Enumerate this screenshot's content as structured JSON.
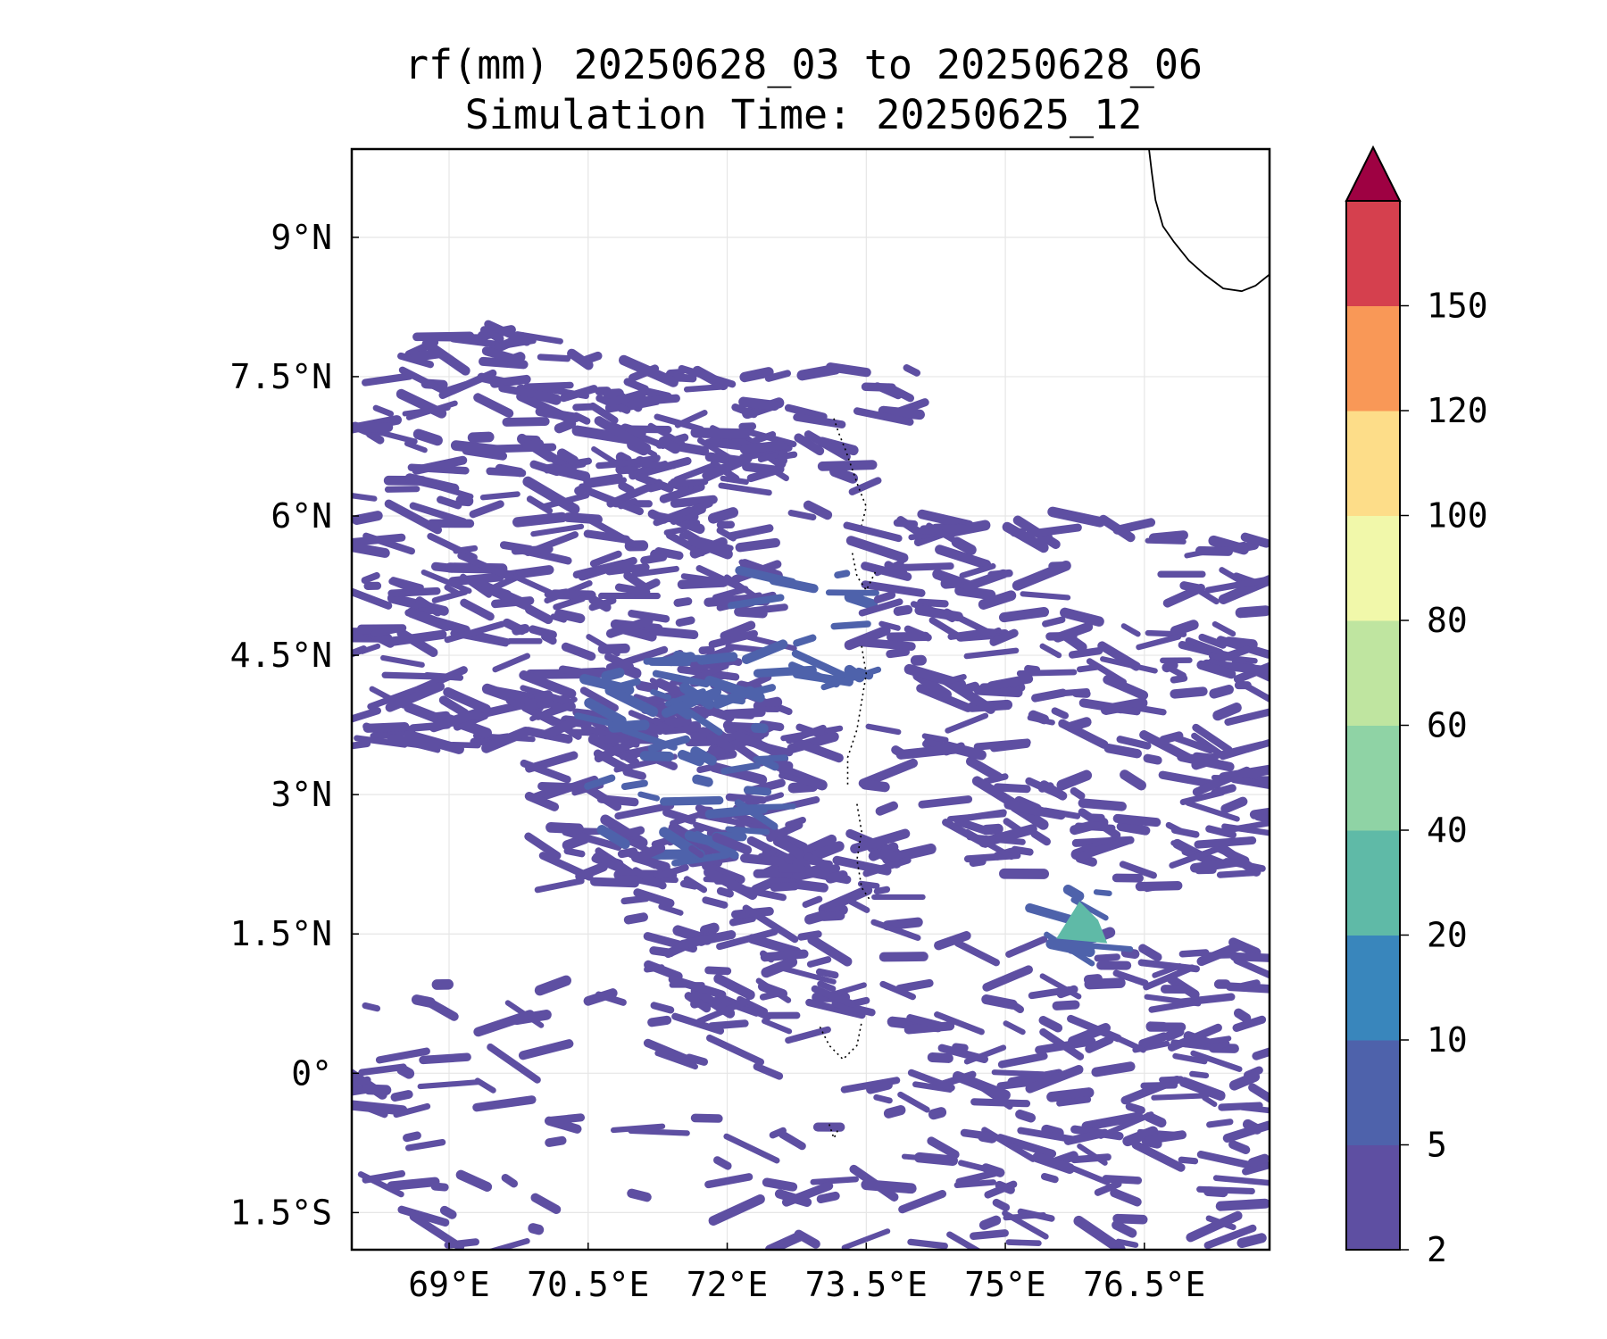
{
  "titles": {
    "line1": "rf(mm) 20250628_03 to 20250628_06",
    "line2": "Simulation Time: 20250625_12"
  },
  "chart_data": {
    "type": "heatmap",
    "variable": "rf(mm)",
    "title": "rf(mm) 20250628_03 to 20250628_06",
    "subtitle": "Simulation Time: 20250625_12",
    "xlim": [
      67.95,
      77.85
    ],
    "ylim": [
      -1.9,
      9.95
    ],
    "x_ticks": [
      69,
      70.5,
      72,
      73.5,
      75,
      76.5
    ],
    "x_tick_labels": [
      "69°E",
      "70.5°E",
      "72°E",
      "73.5°E",
      "75°E",
      "76.5°E"
    ],
    "y_ticks": [
      9,
      7.5,
      6,
      4.5,
      3,
      1.5,
      0,
      -1.5
    ],
    "y_tick_labels": [
      "9°N",
      "7.5°N",
      "6°N",
      "4.5°N",
      "3°N",
      "1.5°N",
      "0°",
      "1.5°S"
    ],
    "grid": true,
    "colorbar": {
      "levels": [
        2,
        5,
        10,
        20,
        40,
        60,
        80,
        100,
        120,
        150
      ],
      "labels": [
        "2",
        "5",
        "10",
        "20",
        "40",
        "60",
        "80",
        "100",
        "120",
        "150"
      ],
      "colors": [
        "#5e4fa2",
        "#4e62ab",
        "#3986bc",
        "#5fbaa7",
        "#8fd3a5",
        "#bfe5a0",
        "#f1f8aa",
        "#fddd89",
        "#f99857",
        "#d5404e"
      ],
      "extend_color": "#9e0142",
      "extend": "max"
    },
    "rain_regions": [
      {
        "lon": [
          68.0,
          71.0
        ],
        "lat": [
          7.0,
          8.0
        ],
        "level": 0,
        "density": 0.5
      },
      {
        "lon": [
          68.0,
          72.5
        ],
        "lat": [
          5.5,
          7.0
        ],
        "level": 0,
        "density": 0.55
      },
      {
        "lon": [
          68.0,
          72.5
        ],
        "lat": [
          3.5,
          5.5
        ],
        "level": 0,
        "density": 0.75
      },
      {
        "lon": [
          70.0,
          73.0
        ],
        "lat": [
          2.0,
          4.0
        ],
        "level": 0,
        "density": 0.7
      },
      {
        "lon": [
          72.3,
          73.5
        ],
        "lat": [
          4.2,
          5.4
        ],
        "level": 1,
        "density": 0.4
      },
      {
        "lon": [
          70.5,
          72.5
        ],
        "lat": [
          2.3,
          4.5
        ],
        "level": 1,
        "density": 0.4
      },
      {
        "lon": [
          73.5,
          77.8
        ],
        "lat": [
          2.0,
          6.0
        ],
        "level": 0,
        "density": 0.5
      },
      {
        "lon": [
          71.0,
          74.0
        ],
        "lat": [
          0.7,
          2.5
        ],
        "level": 0,
        "density": 0.55
      },
      {
        "lon": [
          74.0,
          77.8
        ],
        "lat": [
          -1.9,
          1.5
        ],
        "level": 0,
        "density": 0.45
      },
      {
        "lon": [
          68.0,
          74.0
        ],
        "lat": [
          -1.9,
          1.0
        ],
        "level": 0,
        "density": 0.18
      },
      {
        "lon": [
          70.0,
          74.0
        ],
        "lat": [
          6.0,
          7.6
        ],
        "level": 0,
        "density": 0.45
      },
      {
        "lon": [
          75.5,
          76.2
        ],
        "lat": [
          1.25,
          1.95
        ],
        "level": 1,
        "density": 0.6
      }
    ],
    "hotspot": {
      "lon": 75.8,
      "lat": 1.6,
      "level": 3
    },
    "coastline": [
      [
        76.55,
        9.95
      ],
      [
        76.58,
        9.7
      ],
      [
        76.62,
        9.4
      ],
      [
        76.7,
        9.12
      ],
      [
        76.82,
        8.95
      ],
      [
        76.98,
        8.75
      ],
      [
        77.15,
        8.6
      ],
      [
        77.35,
        8.45
      ],
      [
        77.55,
        8.42
      ],
      [
        77.7,
        8.48
      ],
      [
        77.85,
        8.6
      ]
    ],
    "islands_dotted": [
      [
        [
          73.15,
          7.05
        ],
        [
          73.2,
          6.9
        ],
        [
          73.28,
          6.7
        ],
        [
          73.35,
          6.5
        ],
        [
          73.42,
          6.3
        ],
        [
          73.5,
          6.1
        ],
        [
          73.45,
          5.9
        ]
      ],
      [
        [
          73.35,
          5.6
        ],
        [
          73.4,
          5.35
        ],
        [
          73.5,
          5.2
        ],
        [
          73.6,
          5.4
        ]
      ],
      [
        [
          73.45,
          4.6
        ],
        [
          73.5,
          4.3
        ],
        [
          73.45,
          4.0
        ],
        [
          73.4,
          3.7
        ],
        [
          73.3,
          3.4
        ],
        [
          73.3,
          3.1
        ]
      ],
      [
        [
          73.4,
          2.9
        ],
        [
          73.45,
          2.6
        ],
        [
          73.4,
          2.3
        ],
        [
          73.45,
          2.0
        ],
        [
          73.55,
          1.85
        ]
      ],
      [
        [
          73.0,
          0.5
        ],
        [
          73.1,
          0.3
        ],
        [
          73.25,
          0.15
        ],
        [
          73.4,
          0.3
        ],
        [
          73.45,
          0.55
        ]
      ],
      [
        [
          73.1,
          -0.55
        ],
        [
          73.15,
          -0.7
        ],
        [
          73.2,
          -0.6
        ]
      ]
    ]
  }
}
